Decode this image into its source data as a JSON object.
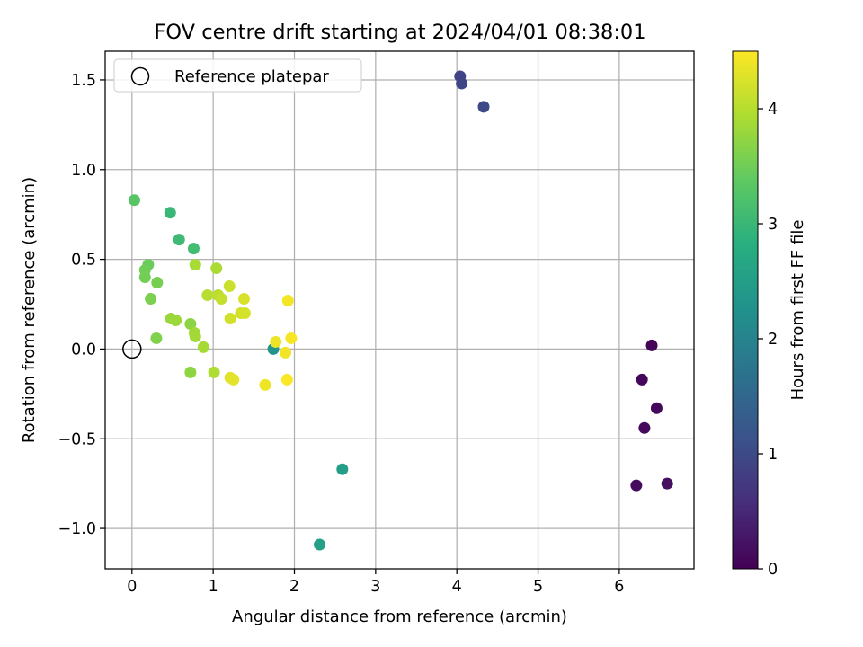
{
  "chart_data": {
    "type": "scatter",
    "title": "FOV centre drift starting at 2024/04/01 08:38:01",
    "xlabel": "Angular distance from reference (arcmin)",
    "ylabel": "Rotation from reference (arcmin)",
    "xlim": [
      -0.33,
      6.92
    ],
    "ylim": [
      -1.225,
      1.66
    ],
    "xticks": [
      {
        "value": 0,
        "label": "0"
      },
      {
        "value": 1,
        "label": "1"
      },
      {
        "value": 2,
        "label": "2"
      },
      {
        "value": 3,
        "label": "3"
      },
      {
        "value": 4,
        "label": "4"
      },
      {
        "value": 5,
        "label": "5"
      },
      {
        "value": 6,
        "label": "6"
      }
    ],
    "yticks": [
      {
        "value": -1.0,
        "label": "−1.0"
      },
      {
        "value": -0.5,
        "label": "−0.5"
      },
      {
        "value": 0.0,
        "label": "0.0"
      },
      {
        "value": 0.5,
        "label": "0.5"
      },
      {
        "value": 1.0,
        "label": "1.0"
      },
      {
        "value": 1.5,
        "label": "1.5"
      }
    ],
    "grid": true,
    "legend": {
      "placement": "top-left",
      "label": "Reference platepar"
    },
    "reference_point": {
      "x": 0,
      "y": 0
    },
    "colorbar": {
      "label": "Hours from first FF file",
      "range": [
        0,
        4.5
      ],
      "ticks": [
        {
          "value": 0,
          "label": "0"
        },
        {
          "value": 1,
          "label": "1"
        },
        {
          "value": 2,
          "label": "2"
        },
        {
          "value": 3,
          "label": "3"
        },
        {
          "value": 4,
          "label": "4"
        }
      ],
      "colormap": [
        "#440154",
        "#472d7b",
        "#3b528b",
        "#2c728e",
        "#21918c",
        "#28ae80",
        "#5ec962",
        "#addc30",
        "#fde725"
      ]
    },
    "points": [
      {
        "x": 6.4,
        "y": 0.02,
        "t": 0.05
      },
      {
        "x": 6.28,
        "y": -0.17,
        "t": 0.08
      },
      {
        "x": 6.46,
        "y": -0.33,
        "t": 0.1
      },
      {
        "x": 6.31,
        "y": -0.44,
        "t": 0.12
      },
      {
        "x": 6.21,
        "y": -0.76,
        "t": 0.14
      },
      {
        "x": 6.59,
        "y": -0.75,
        "t": 0.16
      },
      {
        "x": 4.04,
        "y": 1.52,
        "t": 0.9
      },
      {
        "x": 4.06,
        "y": 1.48,
        "t": 0.95
      },
      {
        "x": 4.33,
        "y": 1.35,
        "t": 1.0
      },
      {
        "x": 1.74,
        "y": 0.0,
        "t": 2.3
      },
      {
        "x": 2.59,
        "y": -0.67,
        "t": 2.5
      },
      {
        "x": 2.31,
        "y": -1.09,
        "t": 2.55
      },
      {
        "x": 0.47,
        "y": 0.76,
        "t": 3.0
      },
      {
        "x": 0.58,
        "y": 0.61,
        "t": 3.05
      },
      {
        "x": 0.76,
        "y": 0.56,
        "t": 3.1
      },
      {
        "x": 0.03,
        "y": 0.83,
        "t": 3.3
      },
      {
        "x": 0.2,
        "y": 0.47,
        "t": 3.45
      },
      {
        "x": 0.16,
        "y": 0.44,
        "t": 3.5
      },
      {
        "x": 0.16,
        "y": 0.4,
        "t": 3.52
      },
      {
        "x": 0.31,
        "y": 0.37,
        "t": 3.55
      },
      {
        "x": 0.23,
        "y": 0.28,
        "t": 3.58
      },
      {
        "x": 0.3,
        "y": 0.06,
        "t": 3.62
      },
      {
        "x": 0.72,
        "y": 0.14,
        "t": 3.7
      },
      {
        "x": 0.72,
        "y": -0.13,
        "t": 3.72
      },
      {
        "x": 0.48,
        "y": 0.17,
        "t": 3.8
      },
      {
        "x": 0.54,
        "y": 0.16,
        "t": 3.82
      },
      {
        "x": 0.77,
        "y": 0.09,
        "t": 3.85
      },
      {
        "x": 0.78,
        "y": 0.07,
        "t": 3.86
      },
      {
        "x": 0.88,
        "y": 0.01,
        "t": 3.88
      },
      {
        "x": 0.78,
        "y": 0.47,
        "t": 3.9
      },
      {
        "x": 1.04,
        "y": 0.45,
        "t": 3.92
      },
      {
        "x": 1.01,
        "y": -0.13,
        "t": 3.95
      },
      {
        "x": 0.93,
        "y": 0.3,
        "t": 4.0
      },
      {
        "x": 1.06,
        "y": 0.3,
        "t": 4.05
      },
      {
        "x": 1.1,
        "y": 0.28,
        "t": 4.1
      },
      {
        "x": 1.2,
        "y": 0.35,
        "t": 4.15
      },
      {
        "x": 1.21,
        "y": 0.17,
        "t": 4.18
      },
      {
        "x": 1.34,
        "y": 0.2,
        "t": 4.2
      },
      {
        "x": 1.39,
        "y": 0.2,
        "t": 4.22
      },
      {
        "x": 1.38,
        "y": 0.28,
        "t": 4.25
      },
      {
        "x": 1.21,
        "y": -0.16,
        "t": 4.3
      },
      {
        "x": 1.25,
        "y": -0.17,
        "t": 4.32
      },
      {
        "x": 1.64,
        "y": -0.2,
        "t": 4.4
      },
      {
        "x": 1.77,
        "y": 0.04,
        "t": 4.38
      },
      {
        "x": 1.89,
        "y": -0.02,
        "t": 4.42
      },
      {
        "x": 1.92,
        "y": 0.27,
        "t": 4.44
      },
      {
        "x": 1.96,
        "y": 0.06,
        "t": 4.46
      },
      {
        "x": 1.91,
        "y": -0.17,
        "t": 4.48
      }
    ]
  }
}
